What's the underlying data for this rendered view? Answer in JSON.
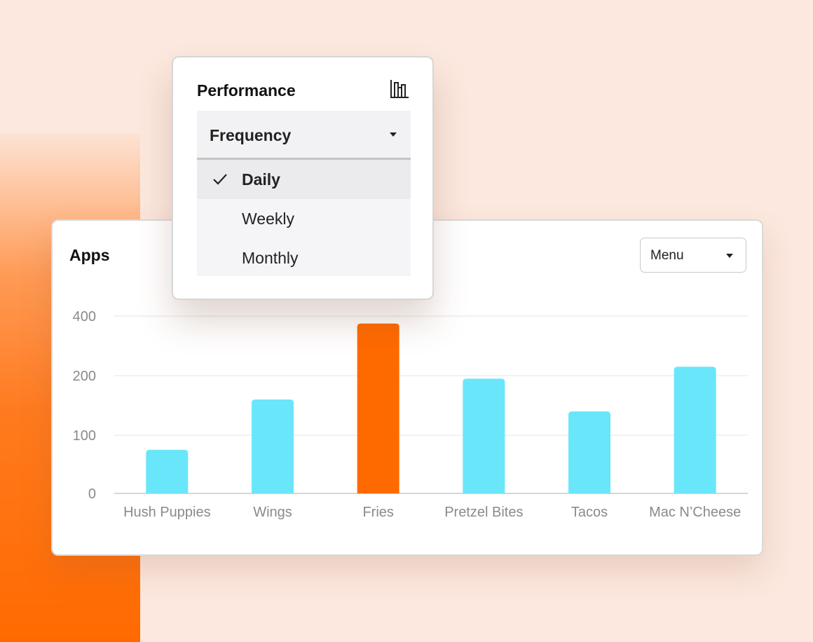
{
  "colors": {
    "background": "#fce8de",
    "accent_orange": "#ff6a00",
    "bar_blue": "#6ae6fb",
    "gridline": "#e9e9e9",
    "tick_text": "#8a8a8a"
  },
  "popover": {
    "title": "Performance",
    "icon": "bar-chart-icon",
    "select_label": "Frequency",
    "options": [
      {
        "label": "Daily",
        "selected": true
      },
      {
        "label": "Weekly",
        "selected": false
      },
      {
        "label": "Monthly",
        "selected": false
      }
    ]
  },
  "card": {
    "title": "Apps",
    "menu_label": "Menu"
  },
  "chart_data": {
    "type": "bar",
    "title": "Apps",
    "categories": [
      "Hush Puppies",
      "Wings",
      "Fries",
      "Pretzel Bites",
      "Tacos",
      "Mac N’Cheese"
    ],
    "values": [
      75,
      160,
      375,
      195,
      140,
      230
    ],
    "highlighted_index": 2,
    "yticks": [
      0,
      100,
      200,
      400
    ],
    "ylim": [
      0,
      400
    ],
    "grid": true,
    "legend": "none"
  }
}
